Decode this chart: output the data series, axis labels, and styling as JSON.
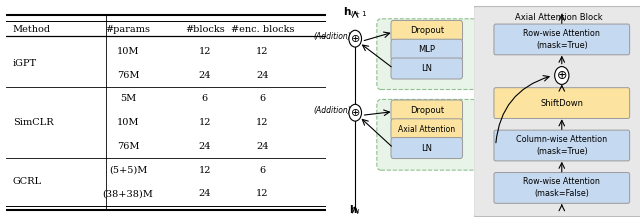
{
  "bg_color": "#ffffff",
  "text_color": "#000000",
  "box_blue": "#c5d9f1",
  "box_yellow": "#fce4a0",
  "box_green_bg": "#e8f4e8",
  "green_border": "#90c090",
  "gray_bg": "#e8e8e8",
  "table_cols": [
    "Method",
    "#params",
    "#blocks",
    "#enc. blocks"
  ],
  "rows_data": [
    [
      "iGPT",
      "10M",
      "12",
      "12"
    ],
    [
      "",
      "76M",
      "24",
      "24"
    ],
    [
      "SimCLR",
      "5M",
      "6",
      "6"
    ],
    [
      "",
      "10M",
      "12",
      "12"
    ],
    [
      "",
      "76M",
      "24",
      "24"
    ],
    [
      "GCRL",
      "(5+5)M",
      "12",
      "6"
    ],
    [
      "",
      "(38+38)M",
      "24",
      "12"
    ]
  ],
  "method_groups": {
    "iGPT": [
      0,
      1
    ],
    "SimCLR": [
      2,
      3,
      4
    ],
    "GCRL": [
      5,
      6
    ]
  },
  "group_sep_after": [
    1,
    4
  ]
}
